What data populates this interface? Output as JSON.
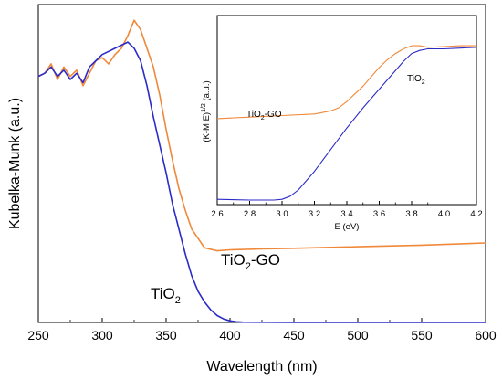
{
  "chart_data": [
    {
      "type": "line",
      "xlabel": "Wavelength (nm)",
      "ylabel": "Kubelka-Munk (a.u.)",
      "xlim": [
        250,
        600
      ],
      "ylim": [
        0,
        1
      ],
      "xticks": [
        "250",
        "300",
        "350",
        "400",
        "450",
        "500",
        "550",
        "600"
      ],
      "yticks_visible": false,
      "grid": false,
      "series": [
        {
          "name": "TiO2-GO",
          "label_base": "TiO",
          "label_sub": "2",
          "label_tail": "-GO",
          "color": "#F0883A",
          "x": [
            250,
            255,
            260,
            265,
            270,
            275,
            280,
            285,
            290,
            295,
            300,
            305,
            310,
            315,
            320,
            325,
            330,
            335,
            340,
            345,
            350,
            355,
            360,
            365,
            370,
            375,
            380,
            390,
            400,
            425,
            450,
            500,
            550,
            600
          ],
          "y": [
            0.79,
            0.8,
            0.83,
            0.78,
            0.82,
            0.79,
            0.81,
            0.76,
            0.8,
            0.84,
            0.85,
            0.83,
            0.86,
            0.88,
            0.92,
            0.97,
            0.94,
            0.88,
            0.82,
            0.73,
            0.62,
            0.52,
            0.43,
            0.36,
            0.3,
            0.27,
            0.24,
            0.23,
            0.233,
            0.236,
            0.238,
            0.243,
            0.248,
            0.255
          ]
        },
        {
          "name": "TiO2",
          "label_base": "TiO",
          "label_sub": "2",
          "label_tail": "",
          "color": "#2B2BC8",
          "x": [
            250,
            255,
            260,
            265,
            270,
            275,
            280,
            285,
            290,
            295,
            300,
            305,
            310,
            315,
            320,
            325,
            330,
            335,
            340,
            345,
            350,
            355,
            360,
            365,
            370,
            375,
            380,
            385,
            390,
            395,
            400,
            405,
            410,
            450,
            500,
            550,
            600
          ],
          "y": [
            0.79,
            0.8,
            0.82,
            0.79,
            0.81,
            0.78,
            0.8,
            0.77,
            0.82,
            0.84,
            0.86,
            0.87,
            0.88,
            0.89,
            0.9,
            0.88,
            0.84,
            0.76,
            0.66,
            0.57,
            0.48,
            0.38,
            0.3,
            0.22,
            0.15,
            0.1,
            0.066,
            0.04,
            0.022,
            0.011,
            0.005,
            0.002,
            0.001,
            0.0,
            0.0,
            0.0,
            0.0
          ]
        }
      ]
    },
    {
      "type": "line",
      "xlabel": "E (eV)",
      "ylabel_base": "(K-M E)",
      "ylabel_sup": "1/2",
      "ylabel_tail": " (a.u.)",
      "xlim": [
        2.6,
        4.2
      ],
      "ylim": [
        0,
        1
      ],
      "xticks": [
        "2.6",
        "2.8",
        "3.0",
        "3.2",
        "3.4",
        "3.6",
        "3.8",
        "4.0",
        "4.2"
      ],
      "yticks_visible": false,
      "grid": false,
      "series": [
        {
          "name": "TiO2-GO",
          "label_base": "TiO",
          "label_sub": "2",
          "label_tail": "-GO",
          "color": "#F0883A",
          "x": [
            2.6,
            2.8,
            3.0,
            3.2,
            3.3,
            3.35,
            3.4,
            3.45,
            3.5,
            3.55,
            3.6,
            3.65,
            3.7,
            3.75,
            3.8,
            3.85,
            3.9,
            4.0,
            4.1,
            4.2
          ],
          "y": [
            0.53,
            0.54,
            0.55,
            0.56,
            0.58,
            0.6,
            0.64,
            0.69,
            0.74,
            0.8,
            0.86,
            0.91,
            0.95,
            0.98,
            1.0,
            1.0,
            0.99,
            0.995,
            1.0,
            1.0
          ]
        },
        {
          "name": "TiO2",
          "label_base": "TiO",
          "label_sub": "2",
          "label_tail": "",
          "color": "#2B2BC8",
          "x": [
            2.6,
            2.8,
            2.95,
            3.0,
            3.05,
            3.1,
            3.2,
            3.3,
            3.4,
            3.5,
            3.6,
            3.7,
            3.75,
            3.8,
            3.85,
            3.9,
            4.0,
            4.1,
            4.2
          ],
          "y": [
            0.01,
            0.005,
            0.005,
            0.01,
            0.03,
            0.07,
            0.19,
            0.33,
            0.47,
            0.6,
            0.72,
            0.84,
            0.9,
            0.95,
            0.97,
            0.98,
            0.98,
            0.985,
            0.99
          ]
        }
      ]
    }
  ]
}
